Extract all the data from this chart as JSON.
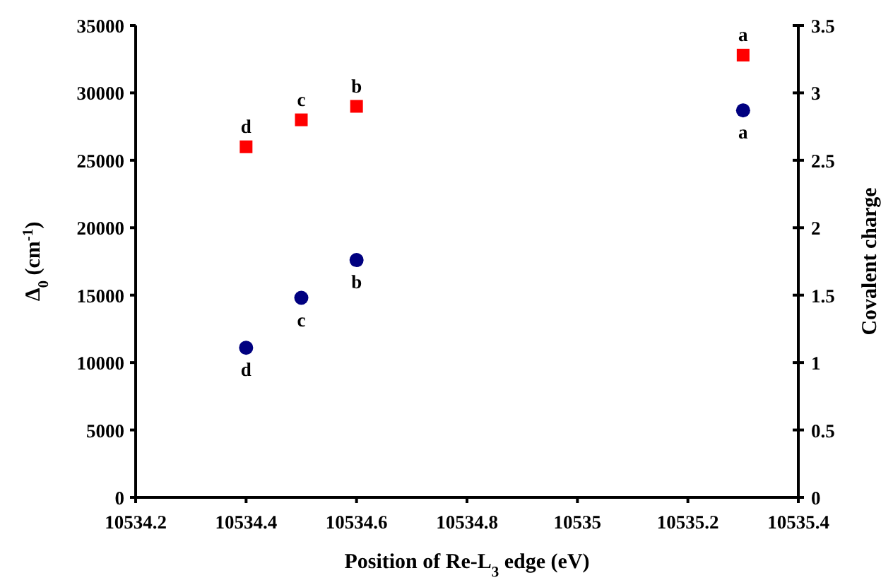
{
  "chart_data": {
    "type": "scatter",
    "xlabel": "Position of Re-L$_{3}$ edge (eV)",
    "ylabel": "Δ$_{0}$ (cm$^{-1}$)",
    "y2label": "Covalent charge",
    "x": [
      10534.4,
      10534.5,
      10534.6,
      10535.3
    ],
    "series": [
      {
        "color": "#ff0000",
        "marker": "square",
        "values": [
          26000,
          28000,
          29000,
          32800
        ],
        "value_labels": [
          "d",
          "c",
          "b",
          "a"
        ]
      },
      {
        "color": "#000080",
        "marker": "circle",
        "axis": "y2",
        "values": [
          1.11,
          1.48,
          1.76,
          2.87
        ],
        "value_labels": [
          "d",
          "c",
          "b",
          "a"
        ]
      }
    ],
    "xlim": [
      10534.2,
      10535.4
    ],
    "xticks": [
      10534.2,
      10534.4,
      10534.6,
      10534.8,
      10535,
      10535.2,
      10535.4
    ],
    "ylim": [
      0,
      35000
    ],
    "yticks": [
      0,
      5000,
      10000,
      15000,
      20000,
      25000,
      30000,
      35000
    ],
    "y2lim": [
      0,
      3.5
    ],
    "y2ticks": [
      0,
      0.5,
      1,
      1.5,
      2,
      2.5,
      3,
      3.5
    ]
  }
}
